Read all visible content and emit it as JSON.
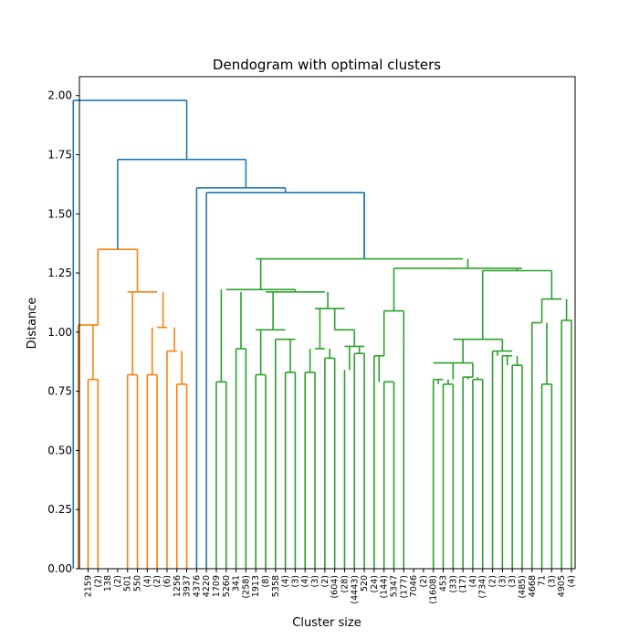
{
  "chart_data": {
    "type": "dendrogram",
    "title": "Dendogram with optimal clusters",
    "xlabel": "Cluster size",
    "ylabel": "Distance",
    "ylim": [
      0,
      2.08
    ],
    "yticks": [
      "0.00",
      "0.25",
      "0.50",
      "0.75",
      "1.00",
      "1.25",
      "1.50",
      "1.75",
      "2.00"
    ],
    "grid": false,
    "colors": {
      "above_threshold": "#1f77b4",
      "cluster_1": "#ff7f0e",
      "cluster_2": "#2ca02c"
    },
    "leaves": [
      "2159",
      "(2)",
      "138",
      "(2)",
      "501",
      "550",
      "(4)",
      "(2)",
      "(6)",
      "1256",
      "3937",
      "4376",
      "4220",
      "1709",
      "5260",
      "341",
      "(258)",
      "1913",
      "(8)",
      "5358",
      "(4)",
      "(3)",
      "(4)",
      "(3)",
      "(2)",
      "(604)",
      "(28)",
      "(4443)",
      "520",
      "(24)",
      "(144)",
      "5347",
      "(177)",
      "7046",
      "(2)",
      "(1608)",
      "453",
      "(33)",
      "(17)",
      "(4)",
      "(734)",
      "(2)",
      "(3)",
      "(3)",
      "(485)",
      "4668",
      "71",
      "(3)",
      "4905",
      "(4)"
    ],
    "links": [
      {
        "icoord": [
          0,
          1
        ],
        "dcoord": [
          0.8,
          0.8
        ],
        "color": "cluster_1"
      },
      {
        "icoord": [
          -1,
          1
        ],
        "dcoord": [
          1.03,
          1.03
        ],
        "color": "cluster_1"
      },
      {
        "icoord": [
          4,
          5
        ],
        "dcoord": [
          0.82,
          0.82
        ],
        "color": "cluster_1"
      },
      {
        "icoord": [
          6,
          7
        ],
        "dcoord": [
          0.82,
          0.82
        ],
        "color": "cluster_1"
      },
      {
        "icoord": [
          9,
          10
        ],
        "dcoord": [
          0.78,
          0.78
        ],
        "color": "cluster_1"
      },
      {
        "icoord": [
          8,
          9
        ],
        "dcoord": [
          0.92,
          0.92
        ],
        "color": "cluster_1"
      },
      {
        "icoord": [
          7,
          8
        ],
        "dcoord": [
          1.02,
          1.02
        ],
        "color": "cluster_1"
      },
      {
        "icoord": [
          4,
          7
        ],
        "dcoord": [
          1.17,
          1.17
        ],
        "color": "cluster_1"
      },
      {
        "icoord": [
          1,
          5
        ],
        "dcoord": [
          1.35,
          1.35
        ],
        "color": "cluster_1"
      },
      {
        "icoord": [
          13,
          14
        ],
        "dcoord": [
          0.79,
          0.79
        ],
        "color": "cluster_2"
      },
      {
        "icoord": [
          15,
          16
        ],
        "dcoord": [
          0.93,
          0.93
        ],
        "color": "cluster_2"
      },
      {
        "icoord": [
          17,
          18
        ],
        "dcoord": [
          0.82,
          0.82
        ],
        "color": "cluster_2"
      },
      {
        "icoord": [
          20,
          21
        ],
        "dcoord": [
          0.83,
          0.83
        ],
        "color": "cluster_2"
      },
      {
        "icoord": [
          19,
          21
        ],
        "dcoord": [
          0.97,
          0.97
        ],
        "color": "cluster_2"
      },
      {
        "icoord": [
          17,
          20
        ],
        "dcoord": [
          1.01,
          1.01
        ],
        "color": "cluster_2"
      },
      {
        "icoord": [
          22,
          23
        ],
        "dcoord": [
          0.83,
          0.83
        ],
        "color": "cluster_2"
      },
      {
        "icoord": [
          24,
          25
        ],
        "dcoord": [
          0.89,
          0.89
        ],
        "color": "cluster_2"
      },
      {
        "icoord": [
          23,
          24
        ],
        "dcoord": [
          0.93,
          0.93
        ],
        "color": "cluster_2"
      },
      {
        "icoord": [
          27,
          28
        ],
        "dcoord": [
          0.91,
          0.91
        ],
        "color": "cluster_2"
      },
      {
        "icoord": [
          26,
          28
        ],
        "dcoord": [
          0.94,
          0.94
        ],
        "color": "cluster_2"
      },
      {
        "icoord": [
          25,
          27
        ],
        "dcoord": [
          1.01,
          1.01
        ],
        "color": "cluster_2"
      },
      {
        "icoord": [
          23,
          26
        ],
        "dcoord": [
          1.1,
          1.1
        ],
        "color": "cluster_2"
      },
      {
        "icoord": [
          18,
          24
        ],
        "dcoord": [
          1.17,
          1.17
        ],
        "color": "cluster_2"
      },
      {
        "icoord": [
          14,
          21
        ],
        "dcoord": [
          1.18,
          1.18
        ],
        "color": "cluster_2"
      },
      {
        "icoord": [
          30,
          31
        ],
        "dcoord": [
          0.79,
          0.79
        ],
        "color": "cluster_2"
      },
      {
        "icoord": [
          29,
          30
        ],
        "dcoord": [
          0.9,
          0.9
        ],
        "color": "cluster_2"
      },
      {
        "icoord": [
          30,
          32
        ],
        "dcoord": [
          1.09,
          1.09
        ],
        "color": "cluster_2"
      },
      {
        "icoord": [
          36,
          37
        ],
        "dcoord": [
          0.78,
          0.78
        ],
        "color": "cluster_2"
      },
      {
        "icoord": [
          35,
          36
        ],
        "dcoord": [
          0.8,
          0.8
        ],
        "color": "cluster_2"
      },
      {
        "icoord": [
          39,
          40
        ],
        "dcoord": [
          0.8,
          0.8
        ],
        "color": "cluster_2"
      },
      {
        "icoord": [
          38,
          39
        ],
        "dcoord": [
          0.81,
          0.81
        ],
        "color": "cluster_2"
      },
      {
        "icoord": [
          35,
          39
        ],
        "dcoord": [
          0.87,
          0.87
        ],
        "color": "cluster_2"
      },
      {
        "icoord": [
          43,
          44
        ],
        "dcoord": [
          0.86,
          0.86
        ],
        "color": "cluster_2"
      },
      {
        "icoord": [
          42,
          43
        ],
        "dcoord": [
          0.9,
          0.9
        ],
        "color": "cluster_2"
      },
      {
        "icoord": [
          41,
          43
        ],
        "dcoord": [
          0.92,
          0.92
        ],
        "color": "cluster_2"
      },
      {
        "icoord": [
          37,
          42
        ],
        "dcoord": [
          0.97,
          0.97
        ],
        "color": "cluster_2"
      },
      {
        "icoord": [
          46,
          47
        ],
        "dcoord": [
          0.78,
          0.78
        ],
        "color": "cluster_2"
      },
      {
        "icoord": [
          45,
          46
        ],
        "dcoord": [
          1.04,
          1.04
        ],
        "color": "cluster_2"
      },
      {
        "icoord": [
          48,
          49
        ],
        "dcoord": [
          1.05,
          1.05
        ],
        "color": "cluster_2"
      },
      {
        "icoord": [
          46,
          48
        ],
        "dcoord": [
          1.14,
          1.14
        ],
        "color": "cluster_2"
      },
      {
        "icoord": [
          40,
          47
        ],
        "dcoord": [
          1.26,
          1.26
        ],
        "color": "cluster_2"
      },
      {
        "icoord": [
          31,
          44
        ],
        "dcoord": [
          1.27,
          1.27
        ],
        "color": "cluster_2"
      },
      {
        "icoord": [
          17,
          38
        ],
        "dcoord": [
          1.31,
          1.31
        ],
        "color": "cluster_2"
      },
      {
        "icoord": [
          12,
          28
        ],
        "dcoord": [
          1.59,
          1.59
        ],
        "color": "above_threshold"
      },
      {
        "icoord": [
          11,
          20
        ],
        "dcoord": [
          1.61,
          1.61
        ],
        "color": "above_threshold"
      },
      {
        "icoord": [
          3,
          16
        ],
        "dcoord": [
          1.73,
          1.73
        ],
        "color": "above_threshold"
      },
      {
        "icoord": [
          -1.5,
          10
        ],
        "dcoord": [
          1.98,
          1.98
        ],
        "color": "above_threshold"
      }
    ],
    "stems": [
      {
        "i": -1.5,
        "from": 0,
        "to": 1.98,
        "color": "above_threshold"
      },
      {
        "i": 10,
        "from": 1.73,
        "to": 1.98,
        "color": "above_threshold"
      },
      {
        "i": 3,
        "from": 1.35,
        "to": 1.73,
        "color": "above_threshold"
      },
      {
        "i": 16,
        "from": 1.61,
        "to": 1.73,
        "color": "above_threshold"
      },
      {
        "i": 11,
        "from": 0,
        "to": 1.61,
        "color": "above_threshold"
      },
      {
        "i": 20,
        "from": 1.59,
        "to": 1.61,
        "color": "above_threshold"
      },
      {
        "i": 12,
        "from": 0,
        "to": 1.59,
        "color": "above_threshold"
      },
      {
        "i": 28,
        "from": 1.31,
        "to": 1.59,
        "color": "above_threshold"
      },
      {
        "i": -1,
        "from": 0,
        "to": 1.03,
        "color": "cluster_1"
      },
      {
        "i": 1,
        "from": 1.03,
        "to": 1.35,
        "color": "cluster_1"
      },
      {
        "i": 0,
        "from": 0,
        "to": 0.8,
        "color": "cluster_1"
      },
      {
        "i": 1,
        "from": 0,
        "to": 0.8,
        "color": "cluster_1"
      },
      {
        "i": 0.5,
        "from": 0.8,
        "to": 1.03,
        "color": "cluster_1"
      },
      {
        "i": 5,
        "from": 1.17,
        "to": 1.35,
        "color": "cluster_1"
      },
      {
        "i": 4,
        "from": 0,
        "to": 0.82,
        "color": "cluster_1"
      },
      {
        "i": 5,
        "from": 0,
        "to": 0.82,
        "color": "cluster_1"
      },
      {
        "i": 4.5,
        "from": 0.82,
        "to": 1.17,
        "color": "cluster_1"
      },
      {
        "i": 6,
        "from": 0,
        "to": 0.82,
        "color": "cluster_1"
      },
      {
        "i": 7,
        "from": 0,
        "to": 0.82,
        "color": "cluster_1"
      },
      {
        "i": 6.5,
        "from": 0.82,
        "to": 1.02,
        "color": "cluster_1"
      },
      {
        "i": 8,
        "from": 0,
        "to": 0.92,
        "color": "cluster_1"
      },
      {
        "i": 9,
        "from": 0,
        "to": 0.78,
        "color": "cluster_1"
      },
      {
        "i": 10,
        "from": 0,
        "to": 0.78,
        "color": "cluster_1"
      },
      {
        "i": 9.5,
        "from": 0.78,
        "to": 0.92,
        "color": "cluster_1"
      },
      {
        "i": 8.75,
        "from": 0.92,
        "to": 1.02,
        "color": "cluster_1"
      },
      {
        "i": 7.6,
        "from": 1.02,
        "to": 1.17,
        "color": "cluster_1"
      }
    ]
  }
}
